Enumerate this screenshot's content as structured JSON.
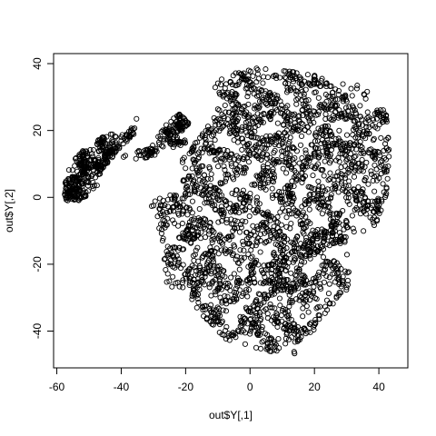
{
  "chart_data": {
    "type": "scatter",
    "title": "",
    "xlabel": "out$Y[,1]",
    "ylabel": "out$Y[,2]",
    "xlim": [
      -61,
      49
    ],
    "ylim": [
      -51,
      43
    ],
    "x_ticks": [
      -60,
      -40,
      -20,
      0,
      20,
      40
    ],
    "y_ticks": [
      -40,
      -20,
      0,
      20,
      40
    ],
    "marker": "open-circle",
    "marker_color": "#000000",
    "grid": false,
    "legend": "none",
    "clusters": [
      {
        "polygon": [
          [
            -58,
            2
          ],
          [
            -56,
            10
          ],
          [
            -52,
            14
          ],
          [
            -46,
            18
          ],
          [
            -40,
            20
          ],
          [
            -35,
            24
          ],
          [
            -36,
            19
          ],
          [
            -42,
            13
          ],
          [
            -46,
            8
          ],
          [
            -48,
            2
          ],
          [
            -53,
            -1
          ],
          [
            -57,
            -1
          ]
        ]
      },
      {
        "polygon": [
          [
            -40,
            12
          ],
          [
            -30,
            16
          ],
          [
            -26,
            22
          ],
          [
            -22,
            25
          ],
          [
            -18,
            22
          ],
          [
            -20,
            16
          ],
          [
            -26,
            14
          ],
          [
            -34,
            11
          ]
        ]
      },
      {
        "polygon": [
          [
            -14,
            33
          ],
          [
            -6,
            37
          ],
          [
            4,
            39
          ],
          [
            14,
            38
          ],
          [
            22,
            36
          ],
          [
            32,
            35
          ],
          [
            36,
            32
          ],
          [
            42,
            26
          ],
          [
            44,
            16
          ],
          [
            44,
            8
          ],
          [
            42,
            -2
          ],
          [
            38,
            -10
          ],
          [
            30,
            -12
          ],
          [
            32,
            -18
          ],
          [
            30,
            -28
          ],
          [
            24,
            -34
          ],
          [
            20,
            -40
          ],
          [
            14,
            -47
          ],
          [
            6,
            -46
          ],
          [
            -6,
            -44
          ],
          [
            -12,
            -38
          ],
          [
            -20,
            -30
          ],
          [
            -26,
            -26
          ],
          [
            -27,
            -16
          ],
          [
            -29,
            -6
          ],
          [
            -31,
            -2
          ],
          [
            -24,
            2
          ],
          [
            -20,
            0
          ],
          [
            -22,
            10
          ],
          [
            -14,
            20
          ],
          [
            -10,
            26
          ]
        ]
      }
    ]
  }
}
